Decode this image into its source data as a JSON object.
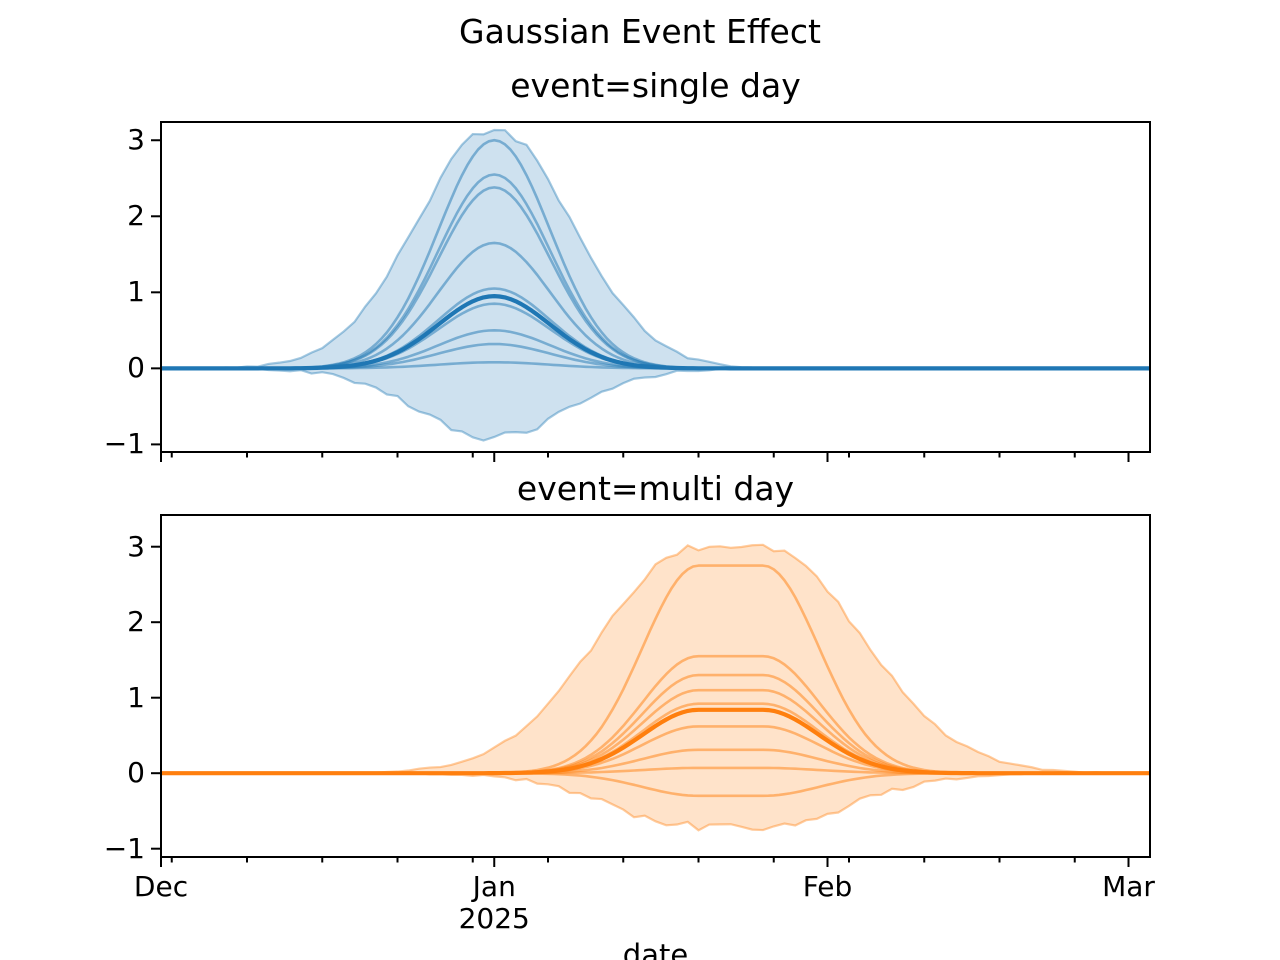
{
  "figure": {
    "suptitle": "Gaussian Event Effect",
    "xlabel": "date",
    "background": "#ffffff"
  },
  "x_axis": {
    "start_date": "2024-12-01",
    "total_days": 92,
    "major_ticks": [
      {
        "day": 0,
        "label": "Dec"
      },
      {
        "day": 31,
        "label": "Jan"
      },
      {
        "day": 62,
        "label": "Feb"
      },
      {
        "day": 90,
        "label": "Mar"
      }
    ],
    "minor_tick_days": [
      1,
      8,
      15,
      22,
      29,
      36,
      43,
      50,
      57,
      64,
      71,
      78,
      85
    ],
    "year_label": "2025",
    "year_label_day": 31
  },
  "chart_data": [
    {
      "type": "line",
      "title": "event=single day",
      "color": "#1f77b4",
      "event": {
        "kind": "single day",
        "date": "2025-01-01",
        "start_day": 31,
        "end_day": 31
      },
      "sigma_days": 5.2,
      "ylim": [
        -1.1,
        3.24
      ],
      "yticks": [
        3,
        2,
        1,
        0,
        -1
      ],
      "ytick_labels": [
        "3",
        "2",
        "1",
        "0",
        "−1"
      ],
      "mean_line": {
        "peak": 0.95
      },
      "sample_peaks": [
        3.0,
        2.55,
        2.38,
        1.65,
        1.05,
        0.85,
        0.5,
        0.32,
        0.08
      ],
      "band": {
        "upper_peak": 3.15,
        "lower_peak": -0.9,
        "upper_sigma_scale": 1.4,
        "lower_sigma_scale": 1.35
      }
    },
    {
      "type": "line",
      "title": "event=multi day",
      "color": "#ff7f0e",
      "event": {
        "kind": "multi day",
        "start": "2025-01-20",
        "end": "2025-01-26",
        "start_day": 50,
        "end_day": 56
      },
      "sigma_days": 5.2,
      "ylim": [
        -1.11,
        3.42
      ],
      "yticks": [
        3,
        2,
        1,
        0,
        -1
      ],
      "ytick_labels": [
        "3",
        "2",
        "1",
        "0",
        "−1"
      ],
      "mean_line": {
        "peak": 0.84
      },
      "sample_peaks": [
        2.75,
        1.55,
        1.3,
        1.1,
        0.92,
        0.62,
        0.31,
        0.07,
        -0.3
      ],
      "band": {
        "upper_peak": 3.0,
        "lower_peak": -0.7,
        "upper_sigma_scale": 1.75,
        "lower_sigma_scale": 1.55
      }
    }
  ]
}
